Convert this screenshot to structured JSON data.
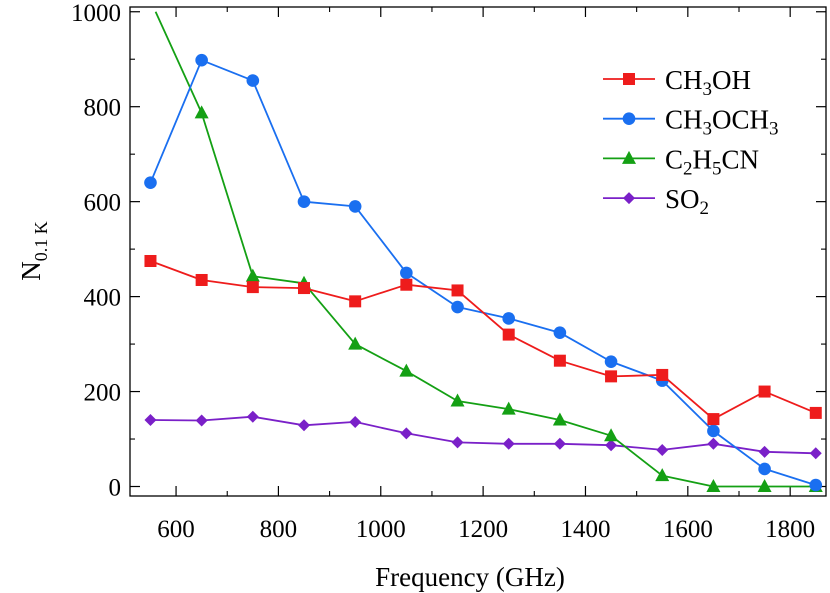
{
  "chart_data": {
    "type": "line",
    "xlabel": "Frequency (GHz)",
    "ylabel": {
      "main": "N",
      "sub": "0.1 K"
    },
    "xlim": [
      510,
      1870
    ],
    "ylim": [
      -20,
      1010
    ],
    "xticks": [
      600,
      800,
      1000,
      1200,
      1400,
      1600,
      1800
    ],
    "yticks": [
      0,
      200,
      400,
      600,
      800,
      1000
    ],
    "xtick_labels": [
      "600",
      "800",
      "1000",
      "1200",
      "1400",
      "1600",
      "1800"
    ],
    "ytick_labels": [
      "0",
      "200",
      "400",
      "600",
      "800",
      "1000"
    ],
    "grid": false,
    "legend_position": "top-right",
    "series": [
      {
        "key": "ch3oh",
        "legend": [
          {
            "t": "CH"
          },
          {
            "t": "3",
            "sub": true
          },
          {
            "t": "OH"
          }
        ],
        "color": "#ee1c1c",
        "marker": "square",
        "x": [
          550,
          650,
          750,
          850,
          950,
          1050,
          1150,
          1250,
          1350,
          1450,
          1550,
          1650,
          1750,
          1850
        ],
        "y": [
          475,
          435,
          420,
          418,
          390,
          425,
          413,
          320,
          265,
          232,
          235,
          142,
          200,
          155
        ]
      },
      {
        "key": "ch3och3",
        "legend": [
          {
            "t": "CH"
          },
          {
            "t": "3",
            "sub": true
          },
          {
            "t": "OCH"
          },
          {
            "t": "3",
            "sub": true
          }
        ],
        "color": "#1a6ff0",
        "marker": "circle",
        "x": [
          550,
          650,
          750,
          850,
          950,
          1050,
          1150,
          1250,
          1350,
          1450,
          1550,
          1650,
          1750,
          1850
        ],
        "y": [
          640,
          898,
          855,
          600,
          590,
          450,
          378,
          354,
          324,
          263,
          223,
          117,
          37,
          3
        ]
      },
      {
        "key": "c2h5cn",
        "legend": [
          {
            "t": "C"
          },
          {
            "t": "2",
            "sub": true
          },
          {
            "t": "H"
          },
          {
            "t": "5",
            "sub": true
          },
          {
            "t": "CN"
          }
        ],
        "color": "#14a014",
        "marker": "triangle",
        "x": [
          560,
          650,
          750,
          850,
          950,
          1050,
          1150,
          1250,
          1350,
          1450,
          1550,
          1650,
          1750,
          1850
        ],
        "y": [
          1000,
          787,
          443,
          428,
          300,
          243,
          180,
          163,
          140,
          107,
          23,
          0,
          0,
          0
        ],
        "marker_skip_first": true
      },
      {
        "key": "so2",
        "legend": [
          {
            "t": "SO"
          },
          {
            "t": "2",
            "sub": true
          }
        ],
        "color": "#7a20c8",
        "marker": "diamond",
        "x": [
          550,
          650,
          750,
          850,
          950,
          1050,
          1150,
          1250,
          1350,
          1450,
          1550,
          1650,
          1750,
          1850
        ],
        "y": [
          140,
          139,
          147,
          129,
          136,
          112,
          93,
          90,
          90,
          87,
          77,
          90,
          73,
          70
        ]
      }
    ]
  }
}
